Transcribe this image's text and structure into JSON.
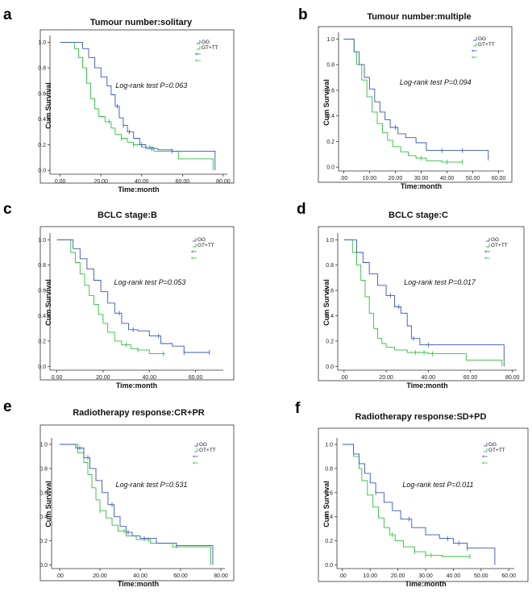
{
  "figure": {
    "panels": [
      {
        "letter": "a",
        "chart_index": 0
      },
      {
        "letter": "b",
        "chart_index": 1
      },
      {
        "letter": "c",
        "chart_index": 2
      },
      {
        "letter": "d",
        "chart_index": 3
      },
      {
        "letter": "e",
        "chart_index": 4
      },
      {
        "letter": "f",
        "chart_index": 5
      }
    ]
  },
  "colors": {
    "GG": "#3a55b4",
    "GT+TT": "#2fbf3f"
  },
  "chart_data": [
    {
      "type": "line",
      "title": "Tumour number:solitary",
      "xlabel": "Time:month",
      "ylabel": "Cum Survival",
      "annotation": "Log-rank test P=0.063",
      "xlim": [
        -5,
        82
      ],
      "ylim": [
        -0.03,
        1.04
      ],
      "xticks": [
        0,
        20,
        40,
        60,
        80
      ],
      "xtick_labels": [
        "0.00",
        "20.00",
        "40.00",
        "60.00",
        "80.00"
      ],
      "yticks": [
        0,
        0.2,
        0.4,
        0.6,
        0.8,
        1.0
      ],
      "ytick_labels": [
        "0.0",
        "0.2",
        "0.4",
        "0.6",
        "0.8",
        "1.0"
      ],
      "legend": [
        "GG",
        "GT+TT",
        "+",
        "+"
      ],
      "series": [
        {
          "name": "GG",
          "x": [
            0,
            5,
            11,
            14,
            17,
            20,
            23,
            25,
            27,
            29,
            31,
            33,
            36,
            39,
            42,
            48,
            55,
            62,
            76,
            76
          ],
          "y": [
            1.0,
            1.0,
            0.95,
            0.88,
            0.8,
            0.73,
            0.66,
            0.59,
            0.5,
            0.41,
            0.35,
            0.3,
            0.25,
            0.2,
            0.17,
            0.16,
            0.15,
            0.15,
            0.15,
            0.0
          ],
          "censor_x": [
            28,
            31,
            34,
            40,
            45,
            55
          ]
        },
        {
          "name": "GT+TT",
          "x": [
            0,
            4,
            7,
            9,
            11,
            13,
            15,
            17,
            19,
            22,
            25,
            27,
            30,
            33,
            36,
            40,
            46,
            58,
            75,
            75
          ],
          "y": [
            1.0,
            1.0,
            0.95,
            0.88,
            0.8,
            0.68,
            0.56,
            0.48,
            0.42,
            0.38,
            0.33,
            0.28,
            0.25,
            0.22,
            0.2,
            0.18,
            0.15,
            0.09,
            0.05,
            0.0
          ],
          "censor_x": [
            24,
            30,
            36,
            44
          ]
        }
      ]
    },
    {
      "type": "line",
      "title": "Tumour number:multiple",
      "xlabel": "Time:month",
      "ylabel": "Cum Survival",
      "annotation": "Log-rank test P=0.094",
      "xlim": [
        -2,
        62
      ],
      "ylim": [
        -0.03,
        1.04
      ],
      "xticks": [
        0,
        10,
        20,
        30,
        40,
        50,
        60
      ],
      "xtick_labels": [
        ".00",
        "10.00",
        "20.00",
        "30.00",
        "40.00",
        "50.00",
        "60.00"
      ],
      "yticks": [
        0,
        0.2,
        0.4,
        0.6,
        0.8,
        1.0
      ],
      "ytick_labels": [
        "0.0",
        "0.2",
        "0.4",
        "0.6",
        "0.8",
        "1.0"
      ],
      "legend": [
        "GG",
        "GT+TT",
        "+",
        "+"
      ],
      "series": [
        {
          "name": "GG",
          "x": [
            0,
            2,
            4,
            6,
            8,
            10,
            12,
            14,
            16,
            18,
            21,
            24,
            28,
            32,
            40,
            47,
            54,
            56,
            56
          ],
          "y": [
            1.0,
            1.0,
            0.9,
            0.8,
            0.7,
            0.61,
            0.51,
            0.43,
            0.37,
            0.31,
            0.26,
            0.23,
            0.19,
            0.13,
            0.13,
            0.13,
            0.13,
            0.07,
            0.07
          ],
          "censor_x": [
            20,
            38,
            46,
            56
          ]
        },
        {
          "name": "GT+TT",
          "x": [
            0,
            2,
            4,
            5,
            7,
            9,
            11,
            13,
            15,
            17,
            19,
            22,
            25,
            28,
            32,
            38,
            46
          ],
          "y": [
            1.0,
            1.0,
            0.9,
            0.8,
            0.68,
            0.55,
            0.43,
            0.34,
            0.27,
            0.21,
            0.16,
            0.12,
            0.09,
            0.07,
            0.05,
            0.04,
            0.04
          ],
          "censor_x": [
            30,
            40,
            46
          ]
        }
      ]
    },
    {
      "type": "line",
      "title": "BCLC stage:B",
      "xlabel": "Time:month",
      "ylabel": "Cum Survival",
      "annotation": "Log-rank test P=0.053",
      "xlim": [
        -3,
        72
      ],
      "ylim": [
        -0.03,
        1.04
      ],
      "xticks": [
        0,
        20,
        40,
        60
      ],
      "xtick_labels": [
        "0.00",
        "20.00",
        "40.00",
        "60.00"
      ],
      "yticks": [
        0,
        0.2,
        0.4,
        0.6,
        0.8,
        1.0
      ],
      "ytick_labels": [
        "0.0",
        "0.2",
        "0.4",
        "0.6",
        "0.8",
        "1.0"
      ],
      "legend": [
        "GG",
        "GT+TT",
        "+",
        "+"
      ],
      "series": [
        {
          "name": "GG",
          "x": [
            0,
            4,
            7,
            10,
            13,
            16,
            19,
            22,
            25,
            28,
            31,
            35,
            40,
            45,
            50,
            55,
            66
          ],
          "y": [
            1.0,
            1.0,
            0.93,
            0.85,
            0.77,
            0.68,
            0.59,
            0.5,
            0.42,
            0.34,
            0.29,
            0.28,
            0.24,
            0.18,
            0.16,
            0.11,
            0.11
          ],
          "censor_x": [
            27,
            33,
            44,
            55,
            66
          ]
        },
        {
          "name": "GT+TT",
          "x": [
            0,
            3,
            6,
            8,
            10,
            12,
            14,
            16,
            18,
            20,
            22,
            25,
            28,
            32,
            35,
            40,
            47
          ],
          "y": [
            1.0,
            1.0,
            0.9,
            0.82,
            0.73,
            0.64,
            0.56,
            0.49,
            0.41,
            0.34,
            0.27,
            0.2,
            0.17,
            0.14,
            0.13,
            0.1,
            0.1
          ],
          "censor_x": [
            30,
            35,
            46
          ]
        }
      ]
    },
    {
      "type": "line",
      "title": "BCLC stage:C",
      "xlabel": "Time:month",
      "ylabel": "Cum Survival",
      "annotation": "Log-rank test P=0.017",
      "xlim": [
        -3,
        82
      ],
      "ylim": [
        -0.03,
        1.04
      ],
      "xticks": [
        0,
        20,
        40,
        60,
        80
      ],
      "xtick_labels": [
        ".00",
        "20.00",
        "40.00",
        "60.00",
        "80.00"
      ],
      "yticks": [
        0,
        0.2,
        0.4,
        0.6,
        0.8,
        1.0
      ],
      "ytick_labels": [
        "0.0",
        "0.2",
        "0.4",
        "0.6",
        "0.8",
        "1.0"
      ],
      "legend": [
        "GG",
        "GT+TT",
        "+",
        "+"
      ],
      "series": [
        {
          "name": "GG",
          "x": [
            0,
            3,
            6,
            9,
            12,
            16,
            20,
            24,
            27,
            30,
            32,
            36,
            42,
            50,
            60,
            70,
            76,
            76
          ],
          "y": [
            1.0,
            1.0,
            0.9,
            0.82,
            0.73,
            0.64,
            0.56,
            0.47,
            0.42,
            0.32,
            0.22,
            0.17,
            0.17,
            0.17,
            0.17,
            0.17,
            0.17,
            0.0
          ],
          "censor_x": [
            22,
            26,
            33,
            40
          ]
        },
        {
          "name": "GT+TT",
          "x": [
            0,
            2,
            4,
            6,
            8,
            10,
            12,
            14,
            16,
            18,
            20,
            24,
            30,
            40,
            58,
            75,
            75
          ],
          "y": [
            1.0,
            1.0,
            0.9,
            0.8,
            0.68,
            0.55,
            0.42,
            0.3,
            0.22,
            0.18,
            0.15,
            0.13,
            0.11,
            0.1,
            0.05,
            0.05,
            0.0
          ],
          "censor_x": [
            34,
            38,
            42
          ]
        }
      ]
    },
    {
      "type": "line",
      "title": "Radiotherapy response:CR+PR",
      "xlabel": "Time:month",
      "ylabel": "Cum Survival",
      "annotation": "Log-rank test P=0.531",
      "xlim": [
        -4,
        82
      ],
      "ylim": [
        -0.03,
        1.04
      ],
      "xticks": [
        0,
        20,
        40,
        60,
        80
      ],
      "xtick_labels": [
        ".00",
        "20.00",
        "40.00",
        "60.00",
        "80.00"
      ],
      "yticks": [
        0,
        0.2,
        0.4,
        0.6,
        0.8,
        1.0
      ],
      "ytick_labels": [
        "0.0",
        "0.2",
        "0.4",
        "0.6",
        "0.8",
        "1.0"
      ],
      "legend": [
        "GG",
        "GT+TT",
        "+",
        "+"
      ],
      "series": [
        {
          "name": "GG",
          "x": [
            0,
            4,
            8,
            12,
            15,
            18,
            21,
            24,
            27,
            30,
            33,
            36,
            40,
            48,
            58,
            76,
            76
          ],
          "y": [
            1.0,
            1.0,
            0.97,
            0.89,
            0.8,
            0.7,
            0.6,
            0.5,
            0.4,
            0.32,
            0.27,
            0.24,
            0.22,
            0.18,
            0.16,
            0.16,
            0.0
          ],
          "censor_x": [
            10,
            14,
            26,
            34,
            42,
            58
          ]
        },
        {
          "name": "GT+TT",
          "x": [
            0,
            5,
            9,
            12,
            14,
            16,
            18,
            20,
            23,
            26,
            29,
            33,
            38,
            45,
            56,
            75,
            75
          ],
          "y": [
            1.0,
            1.0,
            0.93,
            0.85,
            0.75,
            0.64,
            0.54,
            0.45,
            0.39,
            0.33,
            0.28,
            0.24,
            0.21,
            0.18,
            0.15,
            0.08,
            0.0
          ],
          "censor_x": [
            20,
            32,
            44
          ]
        }
      ]
    },
    {
      "type": "line",
      "title": "Radiotherapy response:SD+PD",
      "xlabel": "Time:month",
      "ylabel": "Cum Survival",
      "annotation": "Log-rank test P=0.011",
      "xlim": [
        -2,
        62
      ],
      "ylim": [
        -0.03,
        1.04
      ],
      "xticks": [
        0,
        10,
        20,
        30,
        40,
        50,
        60
      ],
      "xtick_labels": [
        ".00",
        "10.00",
        "20.00",
        "30.00",
        "40.00",
        "50.00",
        "60.00"
      ],
      "yticks": [
        0,
        0.2,
        0.4,
        0.6,
        0.8,
        1.0
      ],
      "ytick_labels": [
        "0.0",
        "0.2",
        "0.4",
        "0.6",
        "0.8",
        "1.0"
      ],
      "legend": [
        "GG",
        "GT+TT",
        "+",
        "+"
      ],
      "series": [
        {
          "name": "GG",
          "x": [
            0,
            2,
            4,
            6,
            8,
            10,
            12,
            15,
            18,
            21,
            25,
            30,
            35,
            40,
            45,
            55,
            55
          ],
          "y": [
            1.0,
            1.0,
            0.92,
            0.84,
            0.76,
            0.68,
            0.6,
            0.52,
            0.45,
            0.38,
            0.31,
            0.25,
            0.22,
            0.18,
            0.14,
            0.14,
            0.0
          ],
          "censor_x": [
            12,
            24,
            38,
            42,
            45
          ]
        },
        {
          "name": "GT+TT",
          "x": [
            0,
            2,
            4,
            6,
            7,
            9,
            11,
            13,
            15,
            17,
            19,
            22,
            26,
            30,
            36,
            46
          ],
          "y": [
            1.0,
            1.0,
            0.9,
            0.8,
            0.7,
            0.58,
            0.48,
            0.39,
            0.31,
            0.25,
            0.2,
            0.15,
            0.11,
            0.08,
            0.07,
            0.07
          ],
          "censor_x": [
            18,
            26,
            30,
            32,
            46
          ]
        }
      ]
    }
  ]
}
